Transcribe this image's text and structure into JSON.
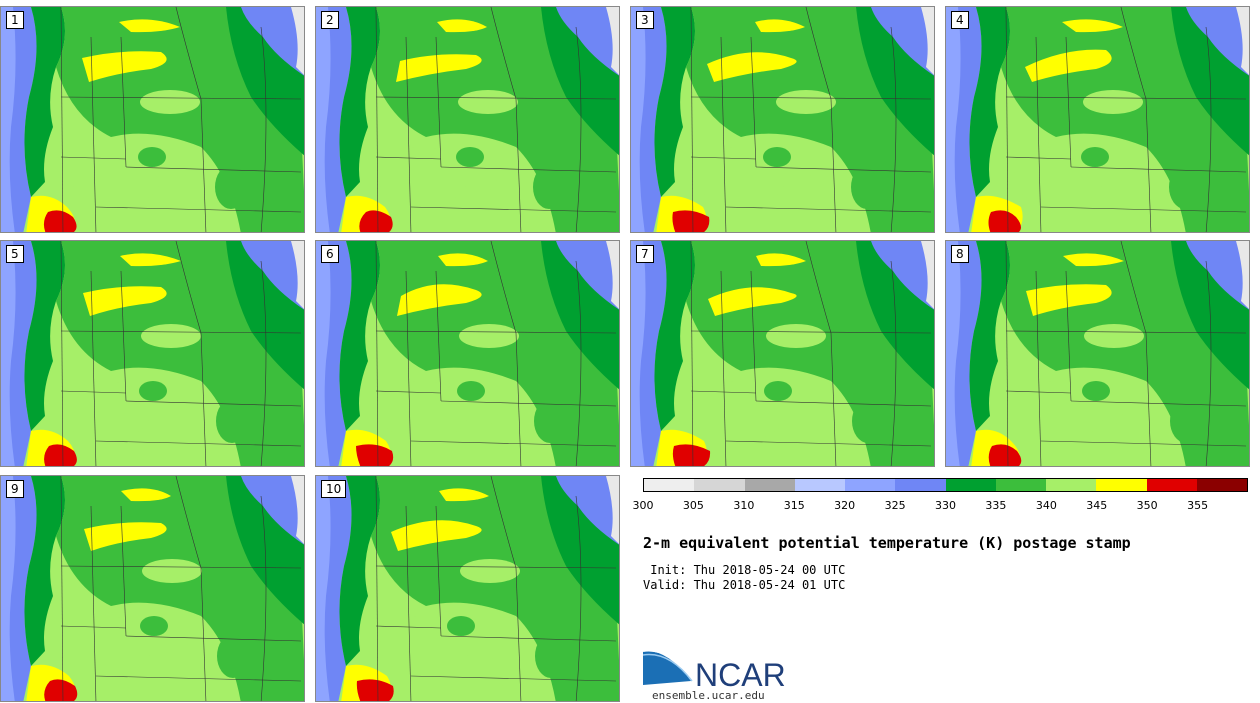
{
  "panels": [
    {
      "label": "1"
    },
    {
      "label": "2"
    },
    {
      "label": "3"
    },
    {
      "label": "4"
    },
    {
      "label": "5"
    },
    {
      "label": "6"
    },
    {
      "label": "7"
    },
    {
      "label": "8"
    },
    {
      "label": "9"
    },
    {
      "label": "10"
    }
  ],
  "colorbar": {
    "ticks": [
      "300",
      "305",
      "310",
      "315",
      "320",
      "325",
      "330",
      "335",
      "340",
      "345",
      "350",
      "355"
    ],
    "colors": [
      "#eeeeee",
      "#d6d6d6",
      "#a8a8a8",
      "#b8c8ff",
      "#8ea4ff",
      "#6f86f5",
      "#00a030",
      "#3cbe3c",
      "#a6ef68",
      "#ffff00",
      "#e00000",
      "#8b0000"
    ]
  },
  "title": "2-m equivalent potential temperature (K) postage stamp",
  "init_line": " Init: Thu 2018-05-24 00 UTC",
  "valid_line": "Valid: Thu 2018-05-24 01 UTC",
  "logo": {
    "text": "NCAR",
    "url": "ensemble.ucar.edu"
  }
}
